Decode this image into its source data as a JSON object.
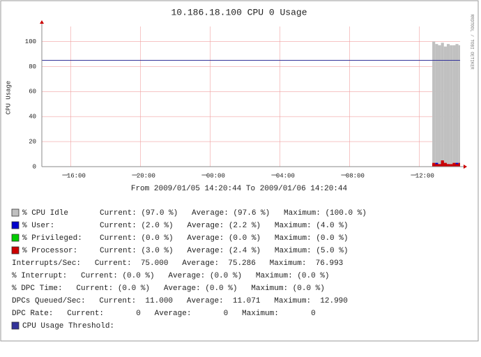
{
  "chart_data": {
    "type": "area",
    "title": "10.186.18.100 CPU 0 Usage",
    "subtitle": "From 2009/01/05 14:20:44 To 2009/01/06 14:20:44",
    "ylabel": "CPU Usage",
    "side_text": "RRDTOOL / TOBI OETIKER",
    "xlim": [
      "2009/01/05 14:20:44",
      "2009/01/06 14:20:44"
    ],
    "xticks": [
      {
        "value": "2009/01/05 16:00",
        "label": "16:00"
      },
      {
        "value": "2009/01/05 20:00",
        "label": "20:00"
      },
      {
        "value": "2009/01/06 00:00",
        "label": "00:00"
      },
      {
        "value": "2009/01/06 04:00",
        "label": "04:00"
      },
      {
        "value": "2009/01/06 08:00",
        "label": "08:00"
      },
      {
        "value": "2009/01/06 12:00",
        "label": "12:00"
      }
    ],
    "ylim": [
      0,
      112
    ],
    "yticks": [
      0,
      20,
      40,
      60,
      80,
      100
    ],
    "grid": true,
    "x": [
      "2009/01/06 12:45",
      "2009/01/06 12:55",
      "2009/01/06 13:05",
      "2009/01/06 13:15",
      "2009/01/06 13:25",
      "2009/01/06 13:35",
      "2009/01/06 13:45",
      "2009/01/06 13:55",
      "2009/01/06 14:05",
      "2009/01/06 14:15"
    ],
    "series": [
      {
        "name": "% CPU Idle",
        "color": "#c0c0c0",
        "values": [
          100,
          98,
          97,
          99,
          96,
          98,
          97,
          97,
          98,
          97
        ],
        "stats": "Current: (97.0 %)   Average: (97.6 %)   Maximum: (100.0 %)"
      },
      {
        "name": "% User:",
        "color": "#0000cc",
        "values": [
          2,
          3,
          2,
          4,
          2,
          2,
          1,
          2,
          3,
          2
        ],
        "stats": "Current: (2.0 %)   Average: (2.2 %)   Maximum: (4.0 %)"
      },
      {
        "name": "% Privileged:",
        "color": "#00cc00",
        "values": [
          0,
          0,
          0,
          0,
          0,
          0,
          0,
          0,
          0,
          0
        ],
        "stats": "Current: (0.0 %)   Average: (0.0 %)   Maximum: (0.0 %)"
      },
      {
        "name": "% Processor:",
        "color": "#cc0000",
        "values": [
          3,
          2,
          2,
          5,
          3,
          2,
          2,
          3,
          2,
          3
        ],
        "stats": "Current: (3.0 %)   Average: (2.4 %)   Maximum: (5.0 %)"
      }
    ],
    "info_lines": [
      "Interrupts/Sec:   Current:  75.000   Average:  75.286   Maximum:  76.993",
      "% Interrupt:   Current: (0.0 %)   Average: (0.0 %)   Maximum: (0.0 %)",
      "% DPC Time:   Current: (0.0 %)   Average: (0.0 %)   Maximum: (0.0 %)",
      "DPCs Queued/Sec:   Current:  11.000   Average:  11.071   Maximum:  12.990",
      "DPC Rate:   Current:       0   Average:       0   Maximum:       0"
    ],
    "threshold": {
      "name": "CPU Usage Threshold:",
      "color": "#333399",
      "value": 85
    }
  }
}
